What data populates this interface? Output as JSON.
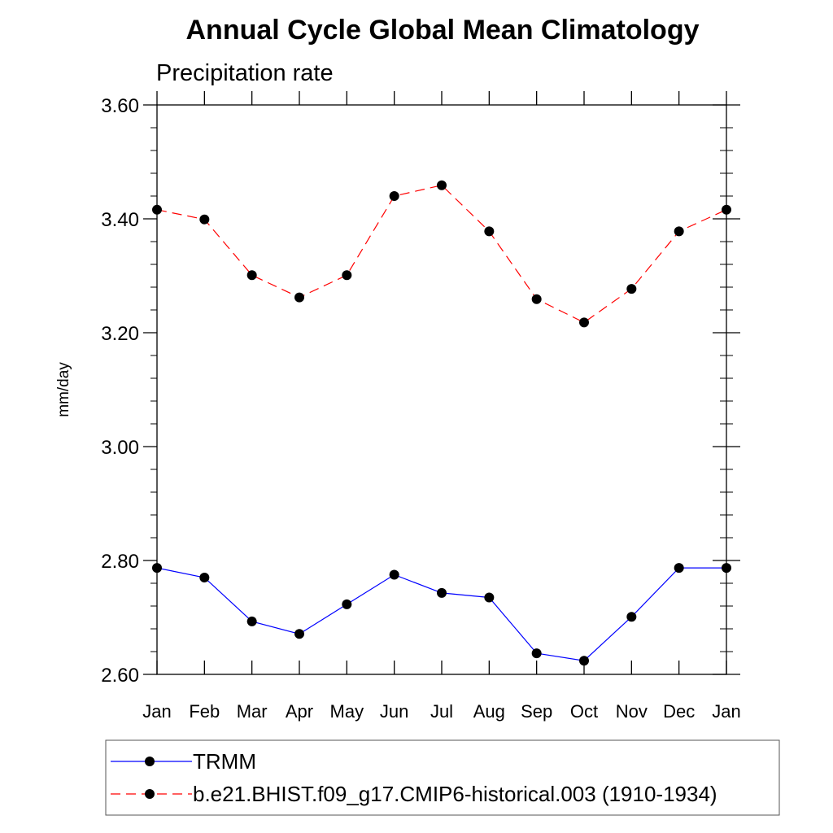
{
  "chart_data": {
    "type": "line",
    "title": "Annual Cycle Global Mean Climatology",
    "subtitle": "Precipitation rate",
    "xlabel": "",
    "ylabel": "mm/day",
    "categories": [
      "Jan",
      "Feb",
      "Mar",
      "Apr",
      "May",
      "Jun",
      "Jul",
      "Aug",
      "Sep",
      "Oct",
      "Nov",
      "Dec",
      "Jan"
    ],
    "ylim": [
      2.6,
      3.6
    ],
    "yticks": [
      2.6,
      2.8,
      3.0,
      3.2,
      3.4,
      3.6
    ],
    "ytick_labels": [
      "2.60",
      "2.80",
      "3.00",
      "3.20",
      "3.40",
      "3.60"
    ],
    "grid": false,
    "legend_position": "bottom",
    "series": [
      {
        "name": "TRMM",
        "color": "#0000ff",
        "line_style": "solid",
        "marker": "filled-circle",
        "values": [
          2.787,
          2.77,
          2.693,
          2.671,
          2.723,
          2.775,
          2.743,
          2.735,
          2.637,
          2.624,
          2.701,
          2.787,
          2.787
        ]
      },
      {
        "name": "b.e21.BHIST.f09_g17.CMIP6-historical.003 (1910-1934)",
        "color": "#ff0000",
        "line_style": "dashed",
        "marker": "filled-circle",
        "values": [
          3.416,
          3.399,
          3.301,
          3.262,
          3.301,
          3.44,
          3.459,
          3.378,
          3.259,
          3.218,
          3.277,
          3.378,
          3.416
        ]
      }
    ]
  }
}
